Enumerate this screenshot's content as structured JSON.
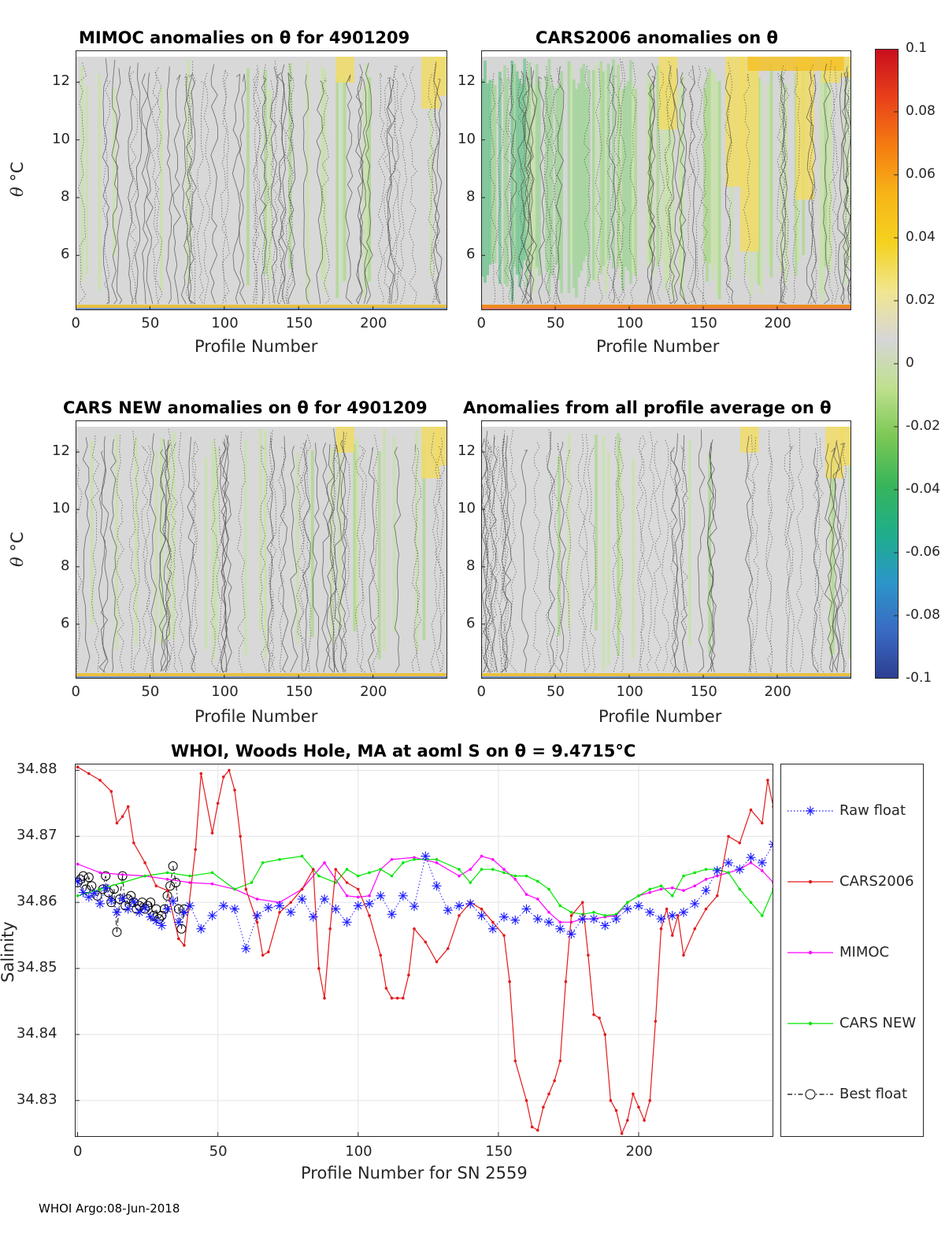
{
  "footer": {
    "text": "WHOI Argo:08-Jun-2018"
  },
  "colorbar": {
    "ticks": [
      "0.1",
      "0.08",
      "0.06",
      "0.04",
      "0.02",
      "0",
      "-0.02",
      "-0.04",
      "-0.06",
      "-0.08",
      "-0.1"
    ],
    "range": [
      -0.1,
      0.1
    ],
    "colors": [
      "#2c3e91",
      "#3a6bc4",
      "#2b96c8",
      "#1fae8a",
      "#38b55a",
      "#7cc855",
      "#bfe08e",
      "#d6d6d6",
      "#f1e690",
      "#f5d21e",
      "#f7b418",
      "#f57c10",
      "#e8401a",
      "#c80e1e"
    ]
  },
  "charts": [
    {
      "type": "heatmap",
      "title": "MIMOC anomalies on θ  for 4901209",
      "xlabel": "Profile Number",
      "ylabel_symbol": "θ",
      "ylabel_unit": "°C",
      "xticks": [
        "0",
        "50",
        "100",
        "150",
        "200"
      ],
      "yticks": [
        "12",
        "10",
        "8",
        "6"
      ],
      "xlim": [
        0,
        250
      ],
      "ylim": [
        4.1,
        13.1
      ]
    },
    {
      "type": "heatmap",
      "title": "CARS2006 anomalies on θ",
      "xlabel": "Profile Number",
      "xticks": [
        "0",
        "50",
        "100",
        "150",
        "200"
      ],
      "yticks": [
        "12",
        "10",
        "8",
        "6"
      ],
      "xlim": [
        0,
        250
      ],
      "ylim": [
        4.1,
        13.1
      ]
    },
    {
      "type": "heatmap",
      "title": "CARS NEW anomalies on θ for 4901209",
      "xlabel": "Profile Number",
      "ylabel_symbol": "θ",
      "ylabel_unit": "°C",
      "xticks": [
        "0",
        "50",
        "100",
        "150",
        "200"
      ],
      "yticks": [
        "12",
        "10",
        "8",
        "6"
      ],
      "xlim": [
        0,
        250
      ],
      "ylim": [
        4.1,
        13.1
      ]
    },
    {
      "type": "heatmap",
      "title": "Anomalies from all profile average on θ",
      "xlabel": "Profile Number",
      "xticks": [
        "0",
        "50",
        "100",
        "150",
        "200"
      ],
      "yticks": [
        "12",
        "10",
        "8",
        "6"
      ],
      "xlim": [
        0,
        250
      ],
      "ylim": [
        4.1,
        13.1
      ]
    }
  ],
  "chart_data": {
    "type": "line",
    "title": "WHOI, Woods Hole, MA at aoml S on θ = 9.4715°C",
    "xlabel": "Profile Number for SN 2559",
    "ylabel": "Salinity",
    "xlim": [
      -1,
      248
    ],
    "ylim": [
      34.8245,
      34.881
    ],
    "xticks": [
      0,
      50,
      100,
      150,
      200
    ],
    "yticks": [
      34.83,
      34.84,
      34.85,
      34.86,
      34.87,
      34.88
    ],
    "ytick_labels": [
      "34.83",
      "34.84",
      "34.85",
      "34.86",
      "34.87",
      "34.88"
    ],
    "xtick_labels": [
      "0",
      "50",
      "100",
      "150",
      "200"
    ],
    "legend_position": "outside-right",
    "series": [
      {
        "name": "Raw float",
        "color": "#1a1aff",
        "marker": "asterisk",
        "line": "dotted",
        "x": [
          0,
          2,
          4,
          6,
          8,
          10,
          12,
          14,
          16,
          18,
          20,
          22,
          24,
          26,
          28,
          30,
          32,
          34,
          36,
          38,
          40,
          44,
          48,
          52,
          56,
          60,
          64,
          68,
          72,
          76,
          80,
          84,
          88,
          92,
          96,
          100,
          104,
          108,
          112,
          116,
          120,
          124,
          128,
          132,
          136,
          140,
          144,
          148,
          152,
          156,
          160,
          164,
          168,
          172,
          176,
          180,
          184,
          188,
          192,
          196,
          200,
          204,
          208,
          212,
          216,
          220,
          224,
          228,
          232,
          236,
          240,
          244,
          248
        ],
        "y": [
          34.8632,
          34.8615,
          34.8608,
          34.8614,
          34.8598,
          34.8622,
          34.8603,
          34.8585,
          34.8606,
          34.859,
          34.8601,
          34.8585,
          34.8592,
          34.8578,
          34.8572,
          34.8565,
          34.859,
          34.8602,
          34.857,
          34.8585,
          34.8595,
          34.856,
          34.858,
          34.8595,
          34.859,
          34.853,
          34.858,
          34.8592,
          34.8595,
          34.8585,
          34.8605,
          34.8578,
          34.8605,
          34.859,
          34.857,
          34.8595,
          34.8598,
          34.861,
          34.8582,
          34.861,
          34.8594,
          34.867,
          34.8625,
          34.8588,
          34.8595,
          34.8598,
          34.858,
          34.856,
          34.8578,
          34.8573,
          34.859,
          34.8575,
          34.857,
          34.856,
          34.8552,
          34.8575,
          34.8575,
          34.8565,
          34.8575,
          34.859,
          34.8595,
          34.8585,
          34.8575,
          34.858,
          34.8585,
          34.8598,
          34.8618,
          34.8648,
          34.866,
          34.865,
          34.8668,
          34.866,
          34.8688
        ]
      },
      {
        "name": "CARS2006",
        "color": "#e31a1c",
        "marker": "dot",
        "line": "solid",
        "x": [
          0,
          4,
          8,
          12,
          14,
          16,
          18,
          20,
          24,
          28,
          32,
          36,
          38,
          42,
          44,
          48,
          50,
          52,
          54,
          56,
          58,
          60,
          64,
          66,
          68,
          72,
          76,
          80,
          84,
          86,
          88,
          90,
          92,
          96,
          100,
          104,
          108,
          110,
          112,
          114,
          116,
          118,
          120,
          124,
          128,
          132,
          136,
          140,
          144,
          148,
          152,
          154,
          156,
          160,
          162,
          164,
          166,
          168,
          170,
          172,
          174,
          176,
          180,
          182,
          184,
          186,
          188,
          190,
          192,
          194,
          196,
          198,
          200,
          202,
          204,
          206,
          208,
          210,
          212,
          214,
          216,
          220,
          224,
          228,
          232,
          236,
          240,
          244,
          246,
          248
        ],
        "y": [
          34.8805,
          34.8795,
          34.8785,
          34.8768,
          34.872,
          34.873,
          34.8745,
          34.869,
          34.866,
          34.8625,
          34.8618,
          34.8545,
          34.8535,
          34.868,
          34.8795,
          34.8705,
          34.875,
          34.879,
          34.88,
          34.877,
          34.87,
          34.862,
          34.857,
          34.852,
          34.8525,
          34.8585,
          34.86,
          34.862,
          34.865,
          34.85,
          34.8455,
          34.856,
          34.865,
          34.863,
          34.862,
          34.858,
          34.852,
          34.847,
          34.8455,
          34.8455,
          34.8455,
          34.849,
          34.856,
          34.854,
          34.851,
          34.853,
          34.858,
          34.86,
          34.859,
          34.857,
          34.855,
          34.848,
          34.836,
          34.83,
          34.826,
          34.8255,
          34.829,
          34.831,
          34.833,
          34.836,
          34.848,
          34.858,
          34.86,
          34.852,
          34.843,
          34.8425,
          34.84,
          34.83,
          34.8285,
          34.825,
          34.827,
          34.831,
          34.829,
          34.827,
          34.83,
          34.842,
          34.856,
          34.859,
          34.855,
          34.858,
          34.852,
          34.856,
          34.859,
          34.861,
          34.87,
          34.869,
          34.874,
          34.872,
          34.8785,
          34.8745
        ]
      },
      {
        "name": "MIMOC",
        "color": "#ff00ff",
        "marker": "dot",
        "line": "solid",
        "x": [
          0,
          8,
          16,
          24,
          32,
          40,
          48,
          56,
          64,
          72,
          80,
          88,
          96,
          100,
          104,
          108,
          112,
          120,
          128,
          136,
          140,
          144,
          148,
          152,
          156,
          160,
          164,
          168,
          172,
          176,
          180,
          184,
          188,
          192,
          196,
          200,
          204,
          208,
          212,
          216,
          220,
          224,
          228,
          232,
          236,
          240,
          244,
          248
        ],
        "y": [
          34.8658,
          34.8645,
          34.8642,
          34.864,
          34.8635,
          34.863,
          34.8628,
          34.862,
          34.8605,
          34.86,
          34.862,
          34.866,
          34.861,
          34.8608,
          34.861,
          34.865,
          34.8665,
          34.8668,
          34.866,
          34.864,
          34.865,
          34.867,
          34.8665,
          34.865,
          34.8635,
          34.8612,
          34.8605,
          34.8585,
          34.857,
          34.857,
          34.8575,
          34.8575,
          34.8578,
          34.858,
          34.86,
          34.861,
          34.8615,
          34.862,
          34.8622,
          34.8618,
          34.8625,
          34.8635,
          34.864,
          34.8645,
          34.865,
          34.866,
          34.8648,
          34.863
        ]
      },
      {
        "name": "CARS NEW",
        "color": "#00e600",
        "marker": "dot",
        "line": "solid",
        "x": [
          0,
          8,
          16,
          24,
          32,
          40,
          48,
          56,
          62,
          66,
          72,
          80,
          86,
          92,
          96,
          100,
          104,
          108,
          112,
          116,
          120,
          128,
          136,
          140,
          144,
          148,
          152,
          156,
          160,
          164,
          168,
          172,
          176,
          180,
          184,
          188,
          192,
          196,
          200,
          204,
          208,
          212,
          216,
          220,
          224,
          228,
          232,
          236,
          240,
          244,
          248
        ],
        "y": [
          34.861,
          34.862,
          34.863,
          34.864,
          34.8645,
          34.864,
          34.8645,
          34.862,
          34.863,
          34.866,
          34.8665,
          34.867,
          34.864,
          34.863,
          34.865,
          34.864,
          34.8645,
          34.865,
          34.864,
          34.866,
          34.8665,
          34.8665,
          34.865,
          34.863,
          34.865,
          34.865,
          34.8645,
          34.864,
          34.864,
          34.8632,
          34.862,
          34.8595,
          34.8585,
          34.8582,
          34.8585,
          34.858,
          34.8582,
          34.86,
          34.861,
          34.862,
          34.8625,
          34.861,
          34.864,
          34.8645,
          34.865,
          34.865,
          34.8645,
          34.862,
          34.86,
          34.858,
          34.862
        ]
      },
      {
        "name": "Best float",
        "color": "#000000",
        "marker": "circle",
        "line": "dash-dot",
        "x": [
          0,
          1,
          2,
          3,
          4,
          5,
          7,
          9,
          10,
          11,
          12,
          13,
          14,
          15,
          16,
          17,
          18,
          19,
          20,
          21,
          22,
          23,
          24,
          25,
          26,
          27,
          28,
          29,
          30,
          31,
          32,
          33,
          34,
          35,
          36,
          37,
          38
        ],
        "y": [
          34.863,
          34.8635,
          34.864,
          34.862,
          34.8638,
          34.8625,
          34.861,
          34.862,
          34.864,
          34.8615,
          34.86,
          34.862,
          34.8555,
          34.8605,
          34.864,
          34.8595,
          34.8605,
          34.861,
          34.86,
          34.859,
          34.8595,
          34.86,
          34.859,
          34.8595,
          34.86,
          34.858,
          34.859,
          34.8575,
          34.858,
          34.859,
          34.861,
          34.8625,
          34.8655,
          34.863,
          34.859,
          34.856,
          34.859
        ]
      }
    ]
  }
}
